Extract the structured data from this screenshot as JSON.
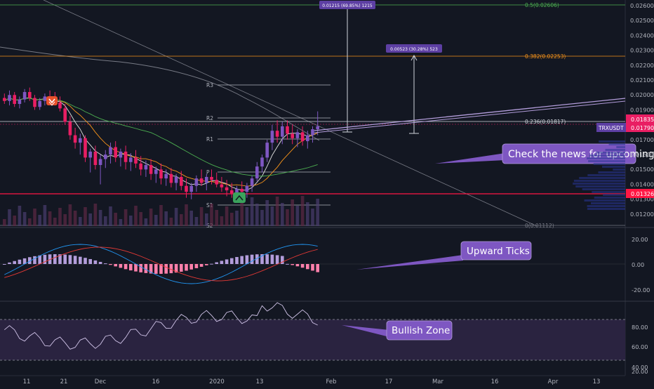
{
  "colors": {
    "background": "#131722",
    "candle_up": "#7e57c2",
    "candle_down": "#e91e63",
    "fib_orange": "#f7931a",
    "fib_green": "#4caf50",
    "support_red": "#ff1744",
    "callout_fill": "#7e57c2",
    "price_tag": "#5d3fa3",
    "rsi_zone": "#2a2340",
    "macd_line": "#2196f3",
    "signal_line": "#e53935"
  },
  "price_axis": {
    "labels": [
      "0.02600",
      "0.02500",
      "0.02400",
      "0.02300",
      "0.02200",
      "0.02100",
      "0.02000",
      "0.01900",
      "0.01800",
      "0.01700",
      "0.01600",
      "0.01500",
      "0.01400",
      "0.01300",
      "0.01200"
    ],
    "tags": [
      {
        "label": "0.01835",
        "kind": "pink"
      },
      {
        "label": "TRXUSDT",
        "kind": "purple"
      },
      {
        "label": "0.01790",
        "kind": "pink"
      },
      {
        "label": "0.01326",
        "kind": "red"
      }
    ]
  },
  "macd_axis": [
    "20.00",
    "0.00",
    "-20.00"
  ],
  "rsi_axis": [
    "80.00",
    "60.00",
    "40.00",
    "20.00"
  ],
  "time_axis": [
    "11",
    "21",
    "Dec",
    "16",
    "2020",
    "13",
    "Feb",
    "17",
    "Mar",
    "16",
    "Apr",
    "13"
  ],
  "fib_levels": [
    {
      "label": "0.5(0.02606)",
      "color": "fib_green"
    },
    {
      "label": "0.382(0.02253)",
      "color": "fib_orange"
    },
    {
      "label": "0.236(0.01817)",
      "color": "white"
    },
    {
      "label": "0(0.01112)",
      "color": "gray"
    }
  ],
  "pivot_labels": [
    "R3",
    "R2",
    "R1",
    "P",
    "S1",
    "S2"
  ],
  "measure_tags": [
    "0.01215 (69.85%) 1215",
    "0.00523 (30.28%) 523"
  ],
  "callouts": {
    "news": "Check the news for upcoming",
    "ticks": "Upward Ticks",
    "zone": "Bullish Zone"
  },
  "chart_data": {
    "type": "candlestick",
    "symbol": "TRXUSDT",
    "last_price": 0.0179,
    "candles": [
      [
        0.0198,
        0.0201,
        0.0194,
        0.0196
      ],
      [
        0.0196,
        0.0203,
        0.0193,
        0.02
      ],
      [
        0.02,
        0.0202,
        0.0192,
        0.0194
      ],
      [
        0.0194,
        0.0199,
        0.0191,
        0.0197
      ],
      [
        0.0197,
        0.0204,
        0.0195,
        0.0202
      ],
      [
        0.0202,
        0.0205,
        0.0196,
        0.0198
      ],
      [
        0.0198,
        0.02,
        0.019,
        0.0192
      ],
      [
        0.0192,
        0.0198,
        0.019,
        0.0196
      ],
      [
        0.0196,
        0.0201,
        0.0193,
        0.0199
      ],
      [
        0.0199,
        0.0203,
        0.0195,
        0.0197
      ],
      [
        0.0197,
        0.0202,
        0.0193,
        0.0195
      ],
      [
        0.0195,
        0.0199,
        0.0189,
        0.0191
      ],
      [
        0.0191,
        0.0194,
        0.018,
        0.0182
      ],
      [
        0.0182,
        0.0186,
        0.017,
        0.0173
      ],
      [
        0.0173,
        0.0178,
        0.0164,
        0.0168
      ],
      [
        0.0168,
        0.0174,
        0.016,
        0.0171
      ],
      [
        0.0171,
        0.0173,
        0.0155,
        0.0158
      ],
      [
        0.0158,
        0.0164,
        0.0148,
        0.0162
      ],
      [
        0.0162,
        0.0166,
        0.015,
        0.0153
      ],
      [
        0.0153,
        0.016,
        0.014,
        0.0157
      ],
      [
        0.0157,
        0.0163,
        0.0151,
        0.016
      ],
      [
        0.016,
        0.0168,
        0.0154,
        0.0165
      ],
      [
        0.0165,
        0.0169,
        0.0155,
        0.0158
      ],
      [
        0.0158,
        0.0164,
        0.0152,
        0.0162
      ],
      [
        0.0162,
        0.0166,
        0.015,
        0.0155
      ],
      [
        0.0155,
        0.0161,
        0.0149,
        0.0158
      ],
      [
        0.0158,
        0.0163,
        0.0151,
        0.0154
      ],
      [
        0.0154,
        0.0159,
        0.0146,
        0.015
      ],
      [
        0.015,
        0.0156,
        0.0145,
        0.0153
      ],
      [
        0.0153,
        0.0157,
        0.0143,
        0.0147
      ],
      [
        0.0147,
        0.0152,
        0.0141,
        0.015
      ],
      [
        0.015,
        0.0154,
        0.014,
        0.0144
      ],
      [
        0.0144,
        0.015,
        0.0139,
        0.0147
      ],
      [
        0.0147,
        0.0151,
        0.0138,
        0.0141
      ],
      [
        0.0141,
        0.0147,
        0.0136,
        0.0145
      ],
      [
        0.0145,
        0.0149,
        0.0136,
        0.0139
      ],
      [
        0.0139,
        0.0144,
        0.0131,
        0.0135
      ],
      [
        0.0135,
        0.0141,
        0.013,
        0.0139
      ],
      [
        0.0139,
        0.0146,
        0.0135,
        0.0144
      ],
      [
        0.0144,
        0.015,
        0.0139,
        0.0141
      ],
      [
        0.0141,
        0.0147,
        0.0136,
        0.0145
      ],
      [
        0.0145,
        0.015,
        0.014,
        0.0143
      ],
      [
        0.0143,
        0.0148,
        0.0138,
        0.014
      ],
      [
        0.014,
        0.0145,
        0.0135,
        0.0138
      ],
      [
        0.0138,
        0.0143,
        0.0132,
        0.0136
      ],
      [
        0.0136,
        0.0141,
        0.0131,
        0.0134
      ],
      [
        0.0134,
        0.0139,
        0.013,
        0.0137
      ],
      [
        0.0137,
        0.0142,
        0.0132,
        0.0135
      ],
      [
        0.0135,
        0.0141,
        0.0131,
        0.0139
      ],
      [
        0.0139,
        0.0146,
        0.0135,
        0.0144
      ],
      [
        0.0144,
        0.0155,
        0.0142,
        0.0152
      ],
      [
        0.0152,
        0.016,
        0.0148,
        0.0158
      ],
      [
        0.0158,
        0.017,
        0.0155,
        0.0168
      ],
      [
        0.0168,
        0.018,
        0.0163,
        0.0176
      ],
      [
        0.0176,
        0.0183,
        0.0168,
        0.0172
      ],
      [
        0.0172,
        0.0182,
        0.0167,
        0.0179
      ],
      [
        0.0179,
        0.0183,
        0.017,
        0.0174
      ],
      [
        0.0174,
        0.018,
        0.0167,
        0.0171
      ],
      [
        0.0171,
        0.0177,
        0.0165,
        0.0175
      ],
      [
        0.0175,
        0.0179,
        0.0166,
        0.0169
      ],
      [
        0.0169,
        0.0176,
        0.0164,
        0.0173
      ],
      [
        0.0173,
        0.0179,
        0.0168,
        0.0177
      ],
      [
        0.0177,
        0.0189,
        0.0173,
        0.0179
      ]
    ]
  }
}
